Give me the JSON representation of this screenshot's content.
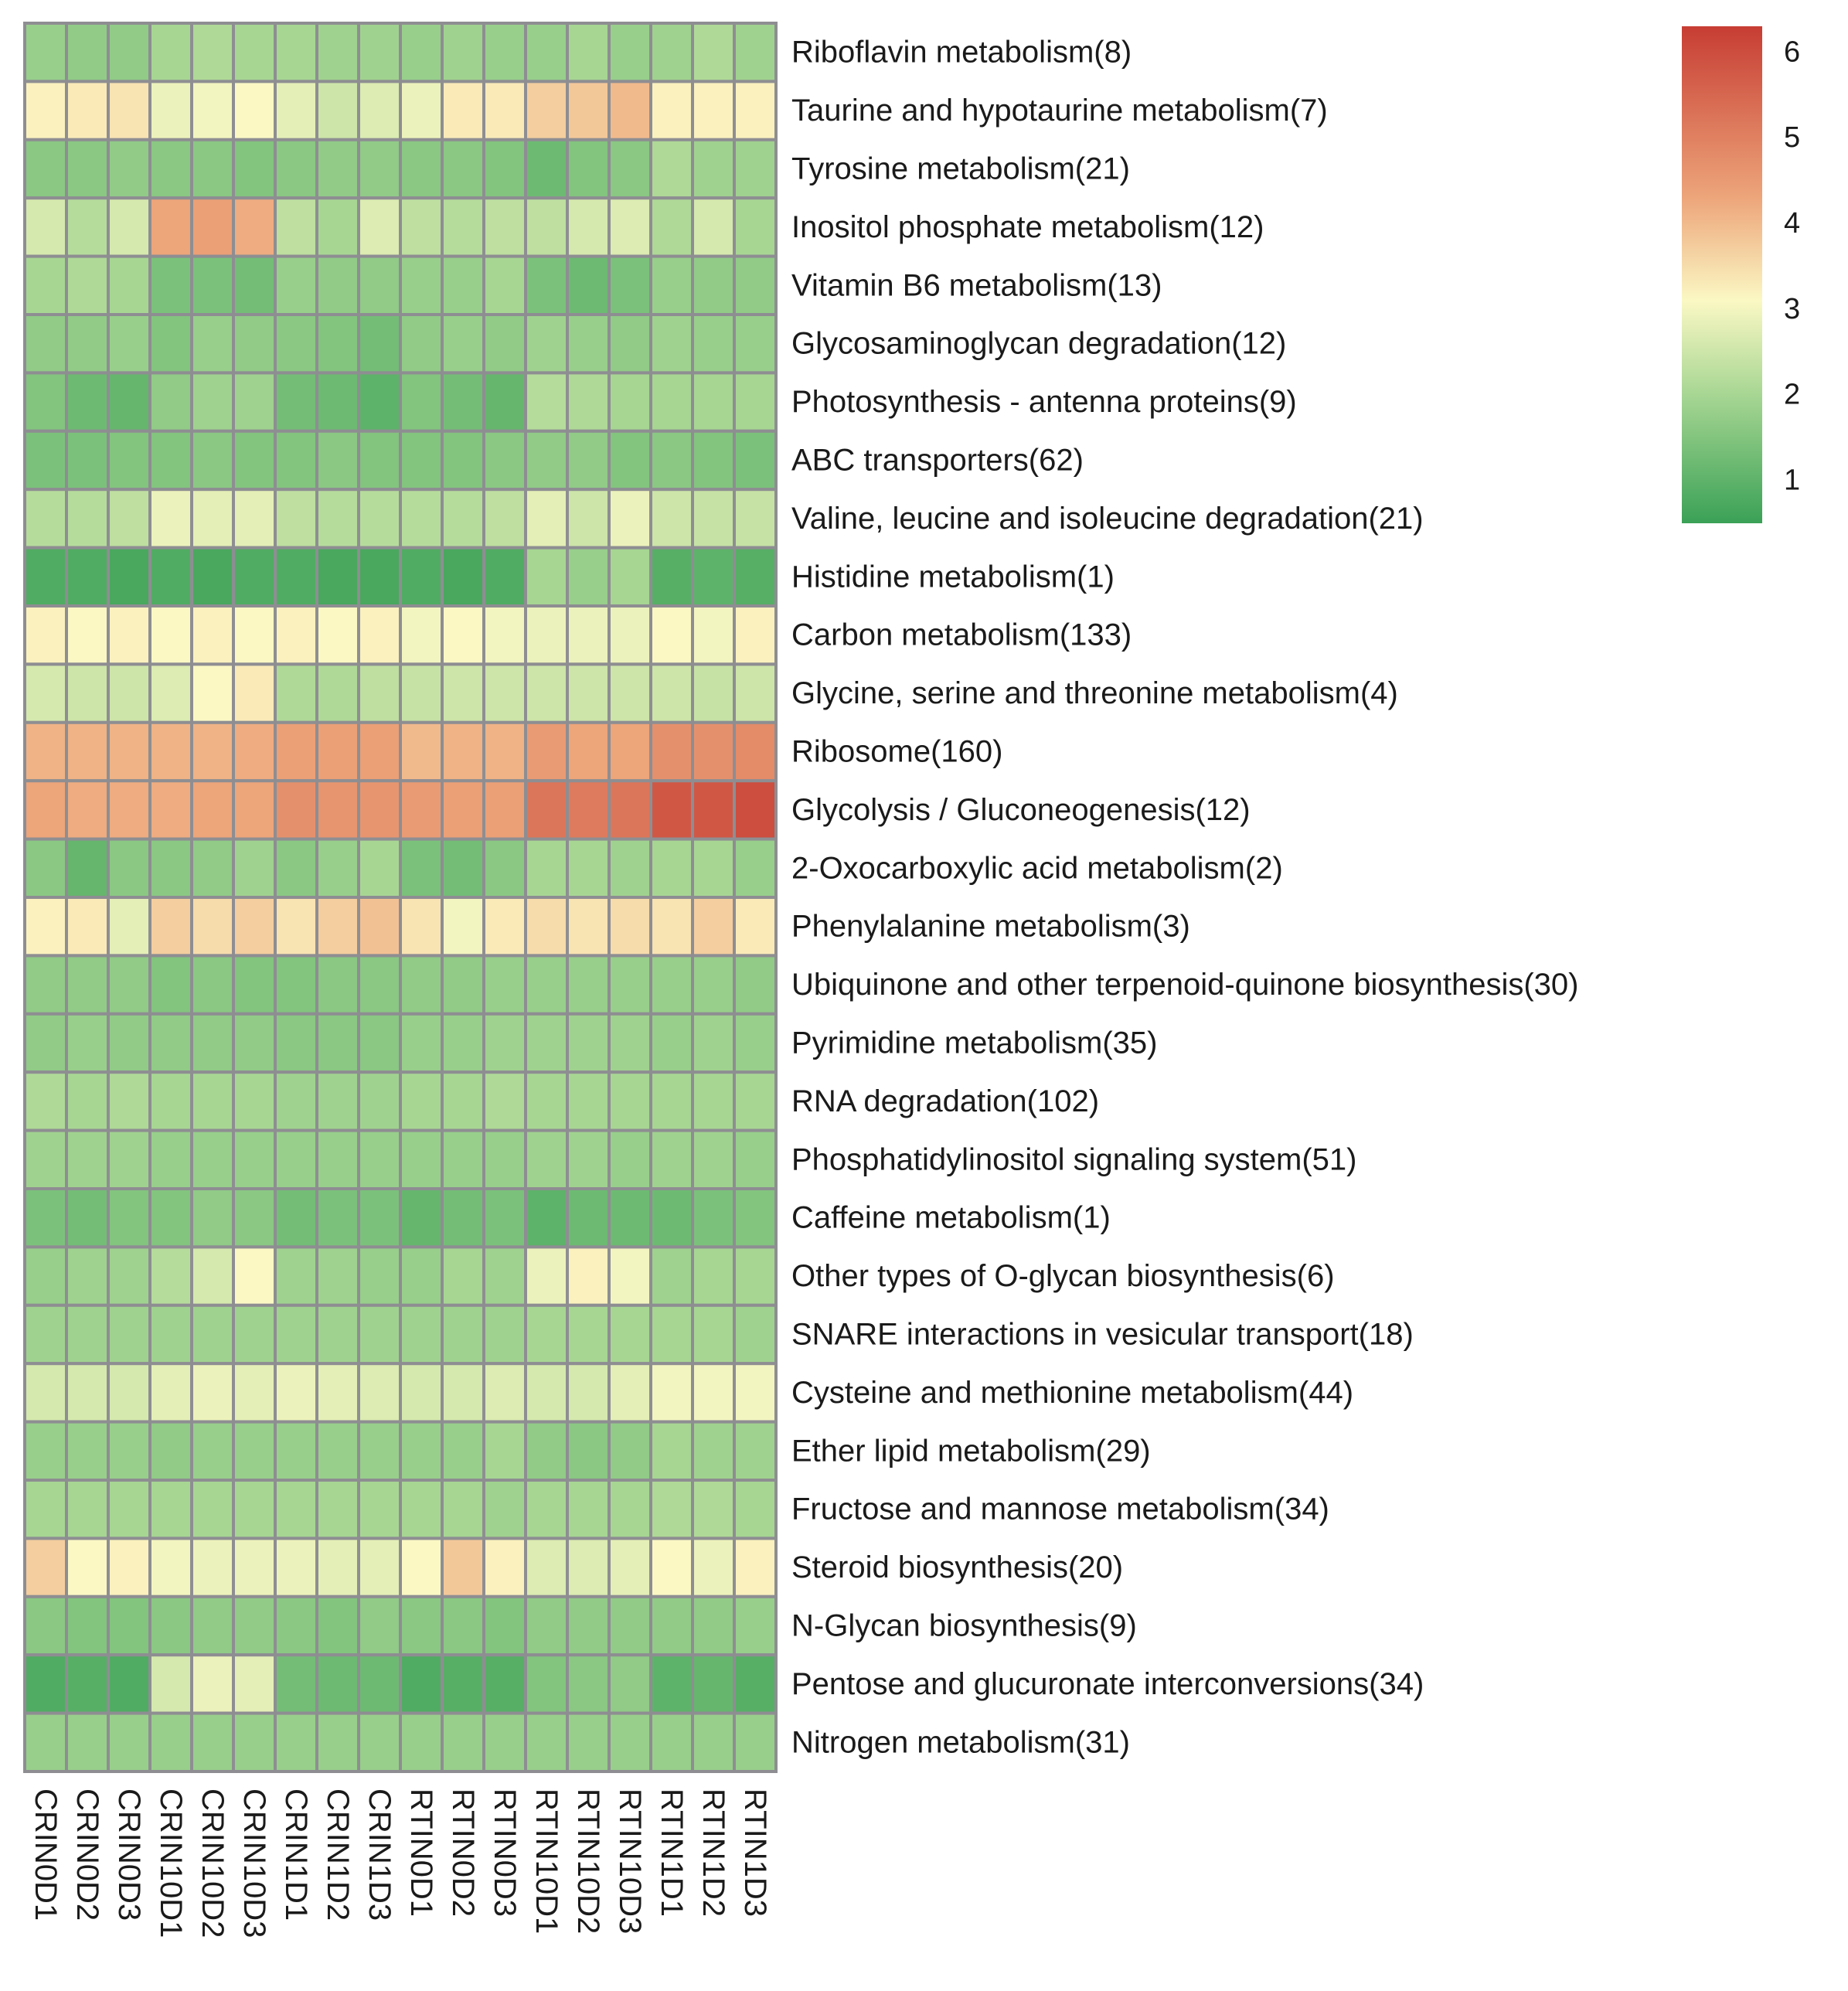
{
  "chart_data": {
    "type": "heatmap",
    "columns": [
      "CRIN0D1",
      "CRIN0D2",
      "CRIN0D3",
      "CRIN10D1",
      "CRIN10D2",
      "CRIN10D3",
      "CRIN1D1",
      "CRIN1D2",
      "CRIN1D3",
      "RTIN0D1",
      "RTIN0D2",
      "RTIN0D3",
      "RTIN10D1",
      "RTIN10D2",
      "RTIN10D3",
      "RTIN1D1",
      "RTIN1D2",
      "RTIN1D3"
    ],
    "rows": [
      "Riboflavin metabolism(8)",
      "Taurine and hypotaurine metabolism(7)",
      "Tyrosine metabolism(21)",
      "Inositol phosphate metabolism(12)",
      "Vitamin B6 metabolism(13)",
      "Glycosaminoglycan degradation(12)",
      "Photosynthesis - antenna proteins(9)",
      "ABC transporters(62)",
      "Valine, leucine and isoleucine degradation(21)",
      "Histidine metabolism(1)",
      "Carbon metabolism(133)",
      "Glycine, serine and threonine metabolism(4)",
      "Ribosome(160)",
      "Glycolysis / Gluconeogenesis(12)",
      "2-Oxocarboxylic acid metabolism(2)",
      "Phenylalanine metabolism(3)",
      "Ubiquinone and other terpenoid-quinone biosynthesis(30)",
      "Pyrimidine metabolism(35)",
      "RNA degradation(102)",
      "Phosphatidylinositol signaling system(51)",
      "Caffeine metabolism(1)",
      "Other types of O-glycan biosynthesis(6)",
      "SNARE interactions in vesicular transport(18)",
      "Cysteine and methionine metabolism(44)",
      "Ether lipid metabolism(29)",
      "Fructose and mannose metabolism(34)",
      "Steroid biosynthesis(20)",
      "N-Glycan biosynthesis(9)",
      "Pentose and glucuronate interconversions(34)",
      "Nitrogen metabolism(31)"
    ],
    "values": [
      [
        1.8,
        1.7,
        1.7,
        2.0,
        2.1,
        2.0,
        2.0,
        1.9,
        1.9,
        1.8,
        1.9,
        1.8,
        1.8,
        2.0,
        1.8,
        1.9,
        2.1,
        1.9
      ],
      [
        3.2,
        3.3,
        3.4,
        2.9,
        3.0,
        3.1,
        2.8,
        2.5,
        2.7,
        2.9,
        3.3,
        3.3,
        3.7,
        3.8,
        4.0,
        3.2,
        3.2,
        3.2
      ],
      [
        1.6,
        1.6,
        1.7,
        1.6,
        1.6,
        1.5,
        1.6,
        1.7,
        1.7,
        1.6,
        1.6,
        1.5,
        1.2,
        1.5,
        1.6,
        2.1,
        1.9,
        1.9
      ],
      [
        2.6,
        2.2,
        2.6,
        4.3,
        4.4,
        4.2,
        2.3,
        2.0,
        2.7,
        2.3,
        2.2,
        2.3,
        2.3,
        2.6,
        2.7,
        2.1,
        2.6,
        2.0
      ],
      [
        2.0,
        2.1,
        2.0,
        1.4,
        1.4,
        1.3,
        1.8,
        1.7,
        1.7,
        1.8,
        1.8,
        2.0,
        1.4,
        1.2,
        1.4,
        1.8,
        1.7,
        1.7
      ],
      [
        1.7,
        1.7,
        1.8,
        1.5,
        1.8,
        1.7,
        1.6,
        1.5,
        1.3,
        1.7,
        1.8,
        1.7,
        1.9,
        1.8,
        1.7,
        1.9,
        1.8,
        1.8
      ],
      [
        1.5,
        1.2,
        1.1,
        1.7,
        1.9,
        1.9,
        1.3,
        1.2,
        1.0,
        1.5,
        1.3,
        1.1,
        2.2,
        2.1,
        2.0,
        2.0,
        2.0,
        2.0
      ],
      [
        1.4,
        1.4,
        1.5,
        1.5,
        1.6,
        1.5,
        1.5,
        1.6,
        1.5,
        1.5,
        1.5,
        1.6,
        1.7,
        1.7,
        1.5,
        1.6,
        1.5,
        1.4
      ],
      [
        2.2,
        2.2,
        2.3,
        2.9,
        2.8,
        2.8,
        2.3,
        2.2,
        2.2,
        2.2,
        2.2,
        2.3,
        2.8,
        2.5,
        2.9,
        2.5,
        2.4,
        2.4
      ],
      [
        0.8,
        0.8,
        0.7,
        0.8,
        0.7,
        0.8,
        0.8,
        0.7,
        0.7,
        0.8,
        0.7,
        0.8,
        2.0,
        1.8,
        2.0,
        0.9,
        1.0,
        0.9
      ],
      [
        3.2,
        3.1,
        3.2,
        3.1,
        3.2,
        3.1,
        3.2,
        3.1,
        3.2,
        3.0,
        3.1,
        3.0,
        2.9,
        2.9,
        2.9,
        3.1,
        3.0,
        3.2
      ],
      [
        2.6,
        2.5,
        2.5,
        2.7,
        3.1,
        3.3,
        2.1,
        2.1,
        2.3,
        2.4,
        2.5,
        2.5,
        2.5,
        2.5,
        2.5,
        2.5,
        2.4,
        2.5
      ],
      [
        4.1,
        4.1,
        4.1,
        4.1,
        4.1,
        4.2,
        4.4,
        4.4,
        4.4,
        4.0,
        4.1,
        4.1,
        4.5,
        4.3,
        4.3,
        4.7,
        4.7,
        4.8
      ],
      [
        4.3,
        4.2,
        4.2,
        4.2,
        4.3,
        4.3,
        4.7,
        4.6,
        4.6,
        4.5,
        4.4,
        4.4,
        5.2,
        5.1,
        5.2,
        5.8,
        5.8,
        6.0
      ],
      [
        1.6,
        1.1,
        1.6,
        1.6,
        1.7,
        1.9,
        1.6,
        1.8,
        2.0,
        1.4,
        1.3,
        1.6,
        2.0,
        2.0,
        1.9,
        2.0,
        2.0,
        1.8
      ],
      [
        3.2,
        3.3,
        2.8,
        3.7,
        3.5,
        3.7,
        3.4,
        3.7,
        3.9,
        3.4,
        3.0,
        3.3,
        3.5,
        3.4,
        3.5,
        3.4,
        3.7,
        3.3
      ],
      [
        1.7,
        1.7,
        1.7,
        1.5,
        1.6,
        1.5,
        1.5,
        1.6,
        1.6,
        1.7,
        1.7,
        1.8,
        1.8,
        1.8,
        1.8,
        1.8,
        1.8,
        1.7
      ],
      [
        1.7,
        1.8,
        1.7,
        1.7,
        1.7,
        1.7,
        1.6,
        1.6,
        1.6,
        1.8,
        1.8,
        1.9,
        1.9,
        1.9,
        1.9,
        1.8,
        1.9,
        1.8
      ],
      [
        2.1,
        2.0,
        2.1,
        2.0,
        2.0,
        2.0,
        1.9,
        1.9,
        1.9,
        2.0,
        2.0,
        2.1,
        2.0,
        2.0,
        2.0,
        2.0,
        2.0,
        2.0
      ],
      [
        1.9,
        1.9,
        1.9,
        1.8,
        1.8,
        1.8,
        1.8,
        1.8,
        1.8,
        1.8,
        1.8,
        1.8,
        1.9,
        1.9,
        1.8,
        1.9,
        1.9,
        1.8
      ],
      [
        1.4,
        1.3,
        1.5,
        1.5,
        1.7,
        1.6,
        1.3,
        1.4,
        1.4,
        1.1,
        1.3,
        1.4,
        1.0,
        1.2,
        1.2,
        1.2,
        1.4,
        1.5
      ],
      [
        1.8,
        1.9,
        1.9,
        2.2,
        2.6,
        3.1,
        1.9,
        1.9,
        1.8,
        1.8,
        2.0,
        1.9,
        2.9,
        3.2,
        3.0,
        1.9,
        2.0,
        2.0
      ],
      [
        1.9,
        1.9,
        1.9,
        1.9,
        1.9,
        1.9,
        1.9,
        1.9,
        1.9,
        1.9,
        1.9,
        1.9,
        2.0,
        2.0,
        2.0,
        2.0,
        2.0,
        1.9
      ],
      [
        2.6,
        2.6,
        2.6,
        2.8,
        2.9,
        2.8,
        2.9,
        2.8,
        2.7,
        2.6,
        2.6,
        2.7,
        2.6,
        2.6,
        2.8,
        3.0,
        3.0,
        3.0
      ],
      [
        1.8,
        1.8,
        1.8,
        1.7,
        1.8,
        1.8,
        1.8,
        1.8,
        1.8,
        1.8,
        1.8,
        2.0,
        1.7,
        1.6,
        1.7,
        2.0,
        1.9,
        1.9
      ],
      [
        2.0,
        2.0,
        2.0,
        2.0,
        2.0,
        2.0,
        2.0,
        2.0,
        2.0,
        2.0,
        2.0,
        1.9,
        2.0,
        2.0,
        2.0,
        2.1,
        2.1,
        2.0
      ],
      [
        3.7,
        3.1,
        3.2,
        3.0,
        2.9,
        2.9,
        2.9,
        2.8,
        2.8,
        3.1,
        3.8,
        3.2,
        2.7,
        2.7,
        2.8,
        3.1,
        2.9,
        3.2
      ],
      [
        1.6,
        1.5,
        1.5,
        1.6,
        1.7,
        1.7,
        1.6,
        1.5,
        1.7,
        1.6,
        1.6,
        1.5,
        1.7,
        1.7,
        1.7,
        1.7,
        1.7,
        1.8
      ],
      [
        0.8,
        0.9,
        0.8,
        2.6,
        2.9,
        2.8,
        1.3,
        1.2,
        1.2,
        0.8,
        0.9,
        0.9,
        1.5,
        1.6,
        1.7,
        1.0,
        1.1,
        0.9
      ],
      [
        1.8,
        1.8,
        1.8,
        1.8,
        1.8,
        1.8,
        1.8,
        1.8,
        1.8,
        1.8,
        1.8,
        1.8,
        1.8,
        1.8,
        1.8,
        1.8,
        1.8,
        1.8
      ]
    ],
    "color_scale": {
      "min": 0.5,
      "max": 6.3,
      "stops": [
        {
          "value": 0.5,
          "color": "#3aa156"
        },
        {
          "value": 2.0,
          "color": "#a7d693"
        },
        {
          "value": 3.1,
          "color": "#fbf8c4"
        },
        {
          "value": 4.3,
          "color": "#eda57a"
        },
        {
          "value": 6.3,
          "color": "#c73d33"
        }
      ]
    },
    "legend_ticks": [
      "1",
      "2",
      "3",
      "4",
      "5",
      "6"
    ],
    "cell_border_color": "#8e8e92",
    "legend_position": "top-right"
  }
}
